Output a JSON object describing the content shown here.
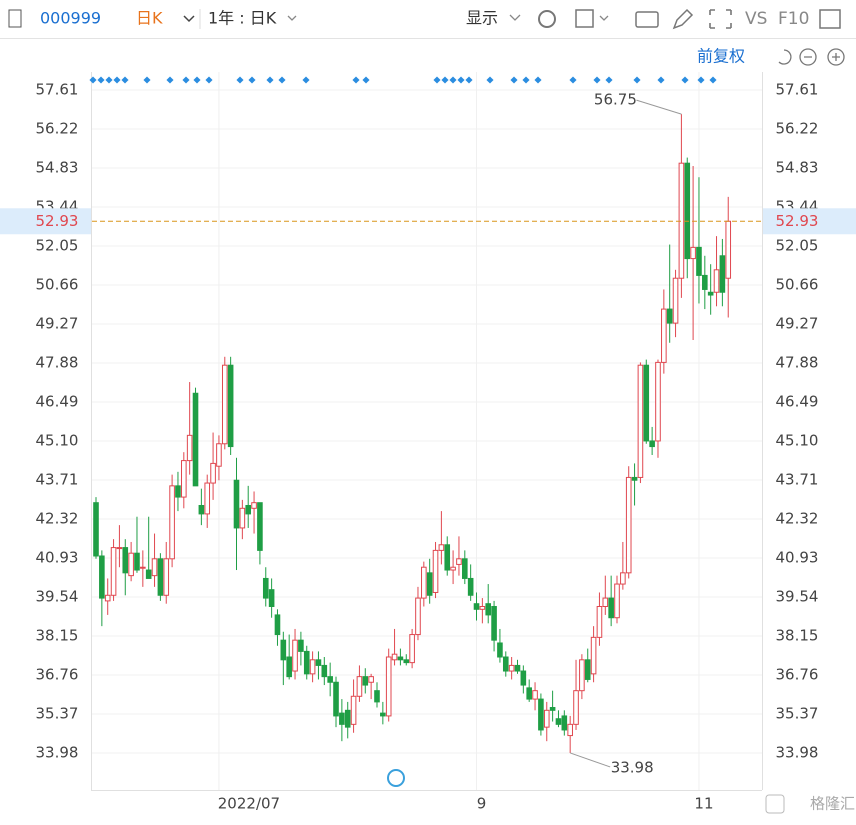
{
  "toolbar": {
    "code": "000999",
    "period": "日K",
    "range": "1年 : 日K",
    "display": "显示",
    "vs": "VS",
    "f10": "F10",
    "adjust": "前复权",
    "watermark": "格隆汇"
  },
  "chart_data": {
    "type": "candlestick",
    "categories": [
      null,
      null,
      null,
      null,
      null,
      null,
      null,
      null,
      null,
      null,
      null,
      null,
      null,
      null,
      null,
      null,
      null,
      null,
      null,
      null,
      null,
      "2022/07",
      null,
      null,
      null,
      null,
      null,
      null,
      null,
      null,
      null,
      null,
      null,
      null,
      null,
      null,
      null,
      null,
      null,
      null,
      null,
      null,
      null,
      null,
      null,
      null,
      null,
      null,
      null,
      null,
      null,
      null,
      null,
      null,
      null,
      null,
      null,
      null,
      null,
      null,
      null,
      null,
      null,
      null,
      null,
      "9",
      null,
      null,
      null,
      null,
      null,
      null,
      null,
      null,
      null,
      null,
      null,
      null,
      null,
      null,
      null,
      null,
      null,
      null,
      null,
      null,
      null,
      null,
      null,
      null,
      null,
      null,
      null,
      null,
      null,
      null,
      null,
      null,
      null,
      null,
      null,
      null,
      null,
      "11",
      null,
      null,
      null,
      null,
      null
    ],
    "open": [
      42.9,
      41.0,
      39.4,
      39.6,
      41.3,
      41.3,
      40.3,
      41.1,
      40.6,
      40.5,
      40.3,
      40.9,
      39.6,
      40.9,
      43.5,
      43.1,
      44.4,
      46.8,
      42.8,
      42.5,
      43.6,
      44.2,
      45.0,
      47.8,
      43.7,
      42.0,
      42.8,
      42.7,
      42.9,
      40.2,
      39.8,
      38.9,
      38.0,
      37.4,
      36.9,
      38.0,
      37.6,
      36.8,
      37.3,
      37.1,
      36.7,
      36.5,
      35.4,
      35.5,
      35.0,
      36.0,
      36.7,
      36.5,
      36.2,
      35.4,
      35.3,
      37.3,
      37.4,
      37.3,
      37.2,
      38.2,
      39.5,
      40.4,
      39.7,
      41.2,
      41.4,
      40.5,
      40.7,
      40.9,
      40.2,
      39.3,
      39.1,
      39.3,
      39.2,
      37.9,
      37.4,
      36.9,
      37.1,
      36.9,
      36.3,
      35.9,
      35.9,
      34.9,
      35.6,
      35.2,
      35.3,
      34.6,
      35.0,
      36.2,
      37.3,
      36.8,
      38.1,
      39.2,
      39.5,
      38.8,
      40.0,
      40.4,
      43.8,
      43.8,
      47.8,
      45.1,
      45.1,
      47.9,
      49.8,
      49.3,
      50.9,
      55.0,
      51.6,
      52.0,
      51.0,
      50.4,
      50.4,
      51.7,
      50.9
    ],
    "high": [
      43.1,
      41.2,
      40.2,
      41.6,
      42.1,
      41.6,
      41.5,
      42.4,
      41.2,
      42.4,
      41.8,
      41.1,
      41.5,
      43.9,
      44.0,
      44.7,
      47.2,
      47.0,
      43.4,
      43.9,
      45.4,
      45.3,
      48.1,
      48.1,
      44.5,
      43.0,
      43.5,
      43.3,
      42.9,
      40.6,
      40.2,
      39.1,
      38.3,
      38.2,
      38.4,
      38.3,
      37.8,
      37.6,
      37.6,
      37.4,
      37.2,
      36.7,
      35.9,
      35.8,
      36.6,
      37.1,
      37.0,
      36.8,
      36.5,
      35.8,
      37.7,
      38.4,
      37.7,
      37.5,
      38.4,
      39.9,
      40.8,
      40.9,
      41.5,
      42.6,
      41.7,
      41.2,
      41.7,
      41.2,
      40.7,
      39.7,
      39.5,
      40.0,
      39.4,
      38.4,
      37.6,
      37.4,
      37.3,
      37.1,
      36.6,
      36.5,
      36.1,
      35.8,
      36.2,
      35.5,
      35.5,
      35.3,
      37.3,
      37.5,
      37.7,
      38.5,
      39.7,
      40.3,
      40.3,
      40.3,
      41.5,
      44.2,
      44.3,
      47.9,
      48.0,
      45.6,
      48.0,
      50.5,
      52.1,
      51.2,
      56.75,
      55.2,
      54.9,
      54.5,
      51.7,
      51.4,
      52.4,
      52.3,
      53.8
    ],
    "low": [
      40.9,
      38.5,
      38.9,
      39.4,
      40.6,
      39.6,
      40.1,
      40.4,
      39.9,
      40.2,
      39.9,
      39.4,
      39.3,
      40.6,
      42.6,
      42.7,
      43.9,
      43.5,
      42.1,
      42.0,
      43.0,
      43.7,
      44.8,
      44.6,
      40.5,
      41.6,
      42.0,
      41.8,
      40.7,
      39.2,
      38.8,
      37.8,
      36.4,
      36.6,
      36.6,
      37.1,
      36.6,
      36.5,
      36.6,
      36.4,
      36.0,
      34.9,
      34.4,
      34.5,
      34.7,
      35.8,
      36.1,
      35.9,
      35.6,
      35.0,
      35.1,
      37.1,
      37.1,
      37.1,
      37.0,
      38.0,
      39.2,
      39.3,
      39.5,
      40.7,
      40.3,
      40.0,
      40.3,
      40.0,
      39.4,
      38.7,
      38.6,
      38.6,
      37.6,
      37.2,
      36.7,
      36.6,
      36.8,
      36.1,
      35.8,
      35.5,
      34.6,
      34.4,
      35.1,
      34.9,
      34.6,
      33.98,
      34.8,
      35.9,
      36.5,
      36.5,
      37.8,
      38.9,
      38.5,
      38.6,
      39.8,
      40.2,
      42.8,
      43.6,
      45.0,
      44.6,
      44.5,
      47.5,
      48.6,
      48.8,
      50.2,
      50.9,
      48.7,
      50.0,
      49.8,
      49.6,
      49.9,
      49.9,
      49.5
    ],
    "close": [
      41.0,
      39.5,
      39.6,
      41.3,
      41.3,
      40.4,
      41.1,
      40.5,
      40.6,
      40.2,
      40.9,
      39.6,
      40.9,
      43.5,
      43.1,
      44.4,
      45.3,
      43.5,
      42.5,
      43.6,
      44.3,
      45.0,
      47.8,
      44.9,
      42.0,
      42.7,
      42.5,
      42.9,
      41.2,
      39.5,
      39.2,
      38.2,
      37.3,
      36.7,
      38.0,
      37.6,
      36.8,
      37.3,
      37.1,
      36.7,
      36.5,
      35.3,
      35.0,
      34.9,
      36.0,
      36.7,
      36.4,
      36.7,
      35.8,
      35.3,
      37.4,
      37.5,
      37.3,
      37.2,
      38.2,
      39.5,
      40.6,
      39.6,
      41.2,
      41.4,
      40.5,
      40.6,
      40.9,
      40.2,
      39.6,
      39.1,
      39.2,
      38.9,
      38.0,
      37.4,
      36.9,
      37.1,
      36.9,
      36.4,
      35.9,
      36.2,
      34.8,
      35.5,
      35.5,
      35.0,
      34.8,
      35.0,
      36.2,
      37.3,
      36.6,
      38.1,
      39.2,
      39.5,
      38.8,
      40.0,
      40.4,
      43.8,
      43.7,
      47.8,
      45.1,
      44.9,
      47.9,
      49.8,
      49.3,
      50.9,
      55.0,
      51.6,
      52.0,
      51.0,
      50.5,
      50.3,
      51.2,
      50.4,
      52.93
    ],
    "up_color": "#e0474f",
    "down_color": "#1f9e45",
    "price_line_color": "#d9961c",
    "ylim": [
      32.66,
      58.25
    ],
    "yticks": [
      33.98,
      35.37,
      36.76,
      38.15,
      39.54,
      40.93,
      42.32,
      43.71,
      {
        "value": 45.1,
        "label": "45.10"
      },
      46.49,
      47.88,
      49.27,
      50.66,
      52.05,
      53.44,
      54.83,
      56.22,
      57.61
    ],
    "grid": true
  }
}
